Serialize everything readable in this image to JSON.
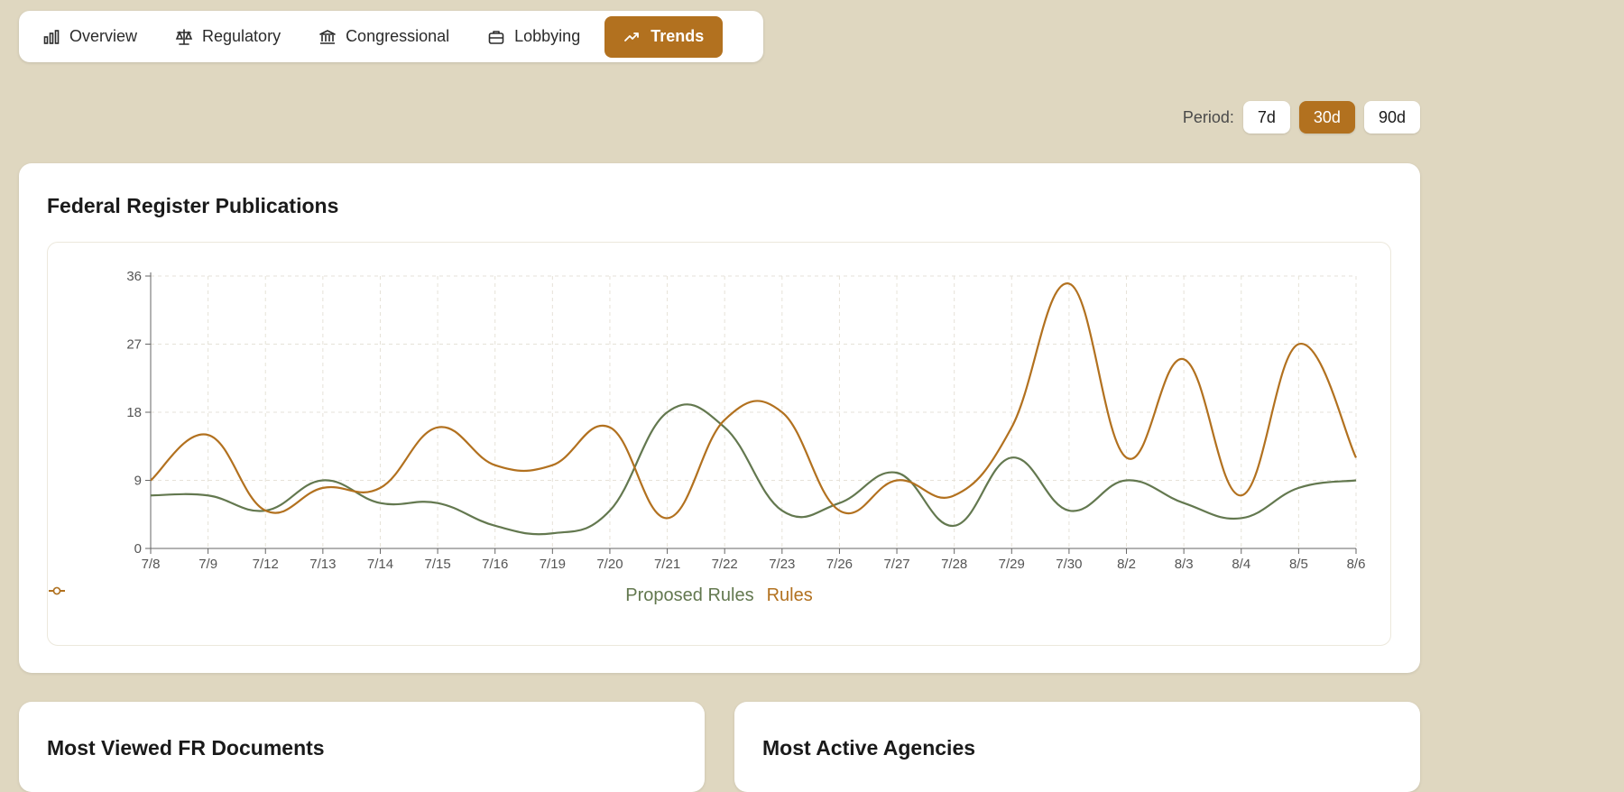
{
  "tabs": [
    {
      "label": "Overview",
      "icon": "bar-chart-icon"
    },
    {
      "label": "Regulatory",
      "icon": "scale-icon"
    },
    {
      "label": "Congressional",
      "icon": "landmark-icon"
    },
    {
      "label": "Lobbying",
      "icon": "briefcase-icon"
    },
    {
      "label": "Trends",
      "icon": "trending-up-icon",
      "active": true
    }
  ],
  "period": {
    "label": "Period:",
    "options": [
      "7d",
      "30d",
      "90d"
    ],
    "selected": "30d"
  },
  "main_card": {
    "title": "Federal Register Publications"
  },
  "bottom_cards": [
    {
      "title": "Most Viewed FR Documents"
    },
    {
      "title": "Most Active Agencies"
    }
  ],
  "colors": {
    "background": "#dfd7c0",
    "accent": "#b2711f",
    "rules": "#b2711f",
    "proposed_rules": "#63784f"
  },
  "chart_data": {
    "type": "line",
    "title": "",
    "xlabel": "",
    "ylabel": "",
    "ylim": [
      0,
      36
    ],
    "yticks": [
      0,
      9,
      18,
      27,
      36
    ],
    "grid": true,
    "legend": "bottom-center",
    "categories": [
      "7/8",
      "7/9",
      "7/12",
      "7/13",
      "7/14",
      "7/15",
      "7/16",
      "7/19",
      "7/20",
      "7/21",
      "7/22",
      "7/23",
      "7/26",
      "7/27",
      "7/28",
      "7/29",
      "7/30",
      "8/2",
      "8/3",
      "8/4",
      "8/5",
      "8/6"
    ],
    "series": [
      {
        "name": "Proposed Rules",
        "color": "#63784f",
        "values": [
          7,
          7,
          5,
          9,
          6,
          6,
          3,
          2,
          5,
          18,
          16,
          5,
          6,
          10,
          3,
          12,
          5,
          9,
          6,
          4,
          8,
          9
        ]
      },
      {
        "name": "Rules",
        "color": "#b2711f",
        "values": [
          9,
          15,
          5,
          8,
          8,
          16,
          11,
          11,
          16,
          4,
          17,
          18,
          5,
          9,
          7,
          16,
          35,
          12,
          25,
          7,
          27,
          12
        ]
      }
    ]
  }
}
